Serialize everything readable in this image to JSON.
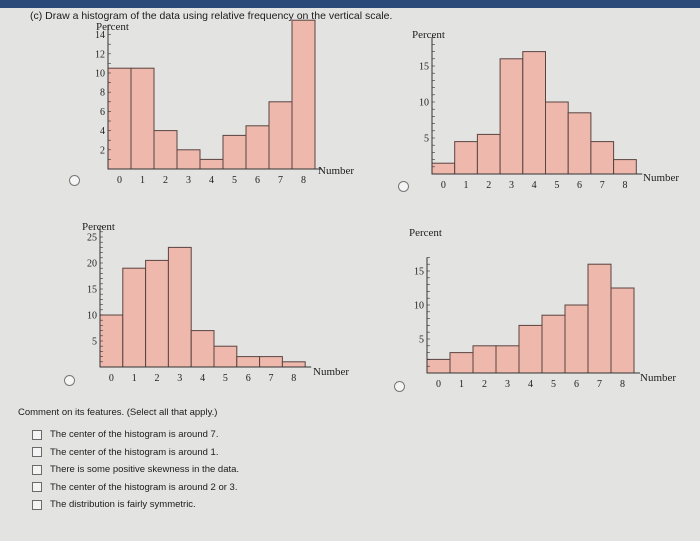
{
  "question": "(c) Draw a histogram of the data using relative frequency on the vertical scale.",
  "colors": {
    "bar_fill": "#efb8ad",
    "bar_stroke": "#5a4440",
    "axis": "#333333"
  },
  "chart_data": [
    {
      "type": "bar",
      "ylabel": "Percent",
      "xlabel": "Number",
      "x_ticks": [
        "0",
        "1",
        "2",
        "3",
        "4",
        "5",
        "6",
        "7",
        "8"
      ],
      "y_ticks": [
        2,
        4,
        6,
        8,
        10,
        12,
        14
      ],
      "ylim": [
        0,
        15
      ],
      "values": [
        10.5,
        10.5,
        4,
        2,
        1,
        3.5,
        4.5,
        7,
        15.5
      ]
    },
    {
      "type": "bar",
      "ylabel": "Percent",
      "xlabel": "Number",
      "x_ticks": [
        "0",
        "1",
        "2",
        "3",
        "4",
        "5",
        "6",
        "7",
        "8"
      ],
      "y_ticks": [
        5,
        10,
        15
      ],
      "ylim": [
        0,
        19
      ],
      "values": [
        1.5,
        4.5,
        5.5,
        16,
        17,
        10,
        8.5,
        4.5,
        2
      ]
    },
    {
      "type": "bar",
      "ylabel": "Percent",
      "xlabel": "Number",
      "x_ticks": [
        "0",
        "1",
        "2",
        "3",
        "4",
        "5",
        "6",
        "7",
        "8"
      ],
      "y_ticks": [
        5,
        10,
        15,
        20,
        25
      ],
      "ylim": [
        0,
        27
      ],
      "values": [
        10,
        19,
        20.5,
        23,
        7,
        4,
        2,
        2,
        1
      ]
    },
    {
      "type": "bar",
      "ylabel": "Percent",
      "xlabel": "Number",
      "x_ticks": [
        "0",
        "1",
        "2",
        "3",
        "4",
        "5",
        "6",
        "7",
        "8"
      ],
      "y_ticks": [
        5,
        10,
        15
      ],
      "ylim": [
        0,
        17
      ],
      "values": [
        2,
        3,
        4,
        4,
        7,
        8.5,
        10,
        16,
        12.5
      ]
    }
  ],
  "comments": {
    "heading": "Comment on its features. (Select all that apply.)",
    "options": [
      "The center of the histogram is around 7.",
      "The center of the histogram is around 1.",
      "There is some positive skewness in the data.",
      "The center of the histogram is around 2 or 3.",
      "The distribution is fairly symmetric."
    ]
  }
}
